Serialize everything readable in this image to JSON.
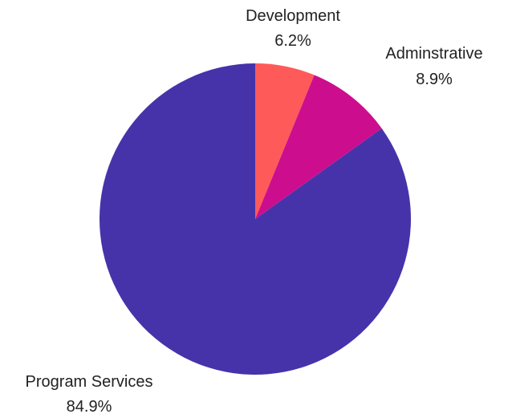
{
  "chart_data": {
    "type": "pie",
    "categories": [
      "Development",
      "Adminstrative",
      "Program Services"
    ],
    "values": [
      6.2,
      8.9,
      84.9
    ],
    "value_labels": [
      "6.2%",
      "8.9%",
      "84.9%"
    ],
    "colors": [
      "#ff5a5a",
      "#cc0e8e",
      "#4633aa"
    ],
    "start_angle": "12 o'clock",
    "direction": "clockwise",
    "legend": "none",
    "title": ""
  }
}
